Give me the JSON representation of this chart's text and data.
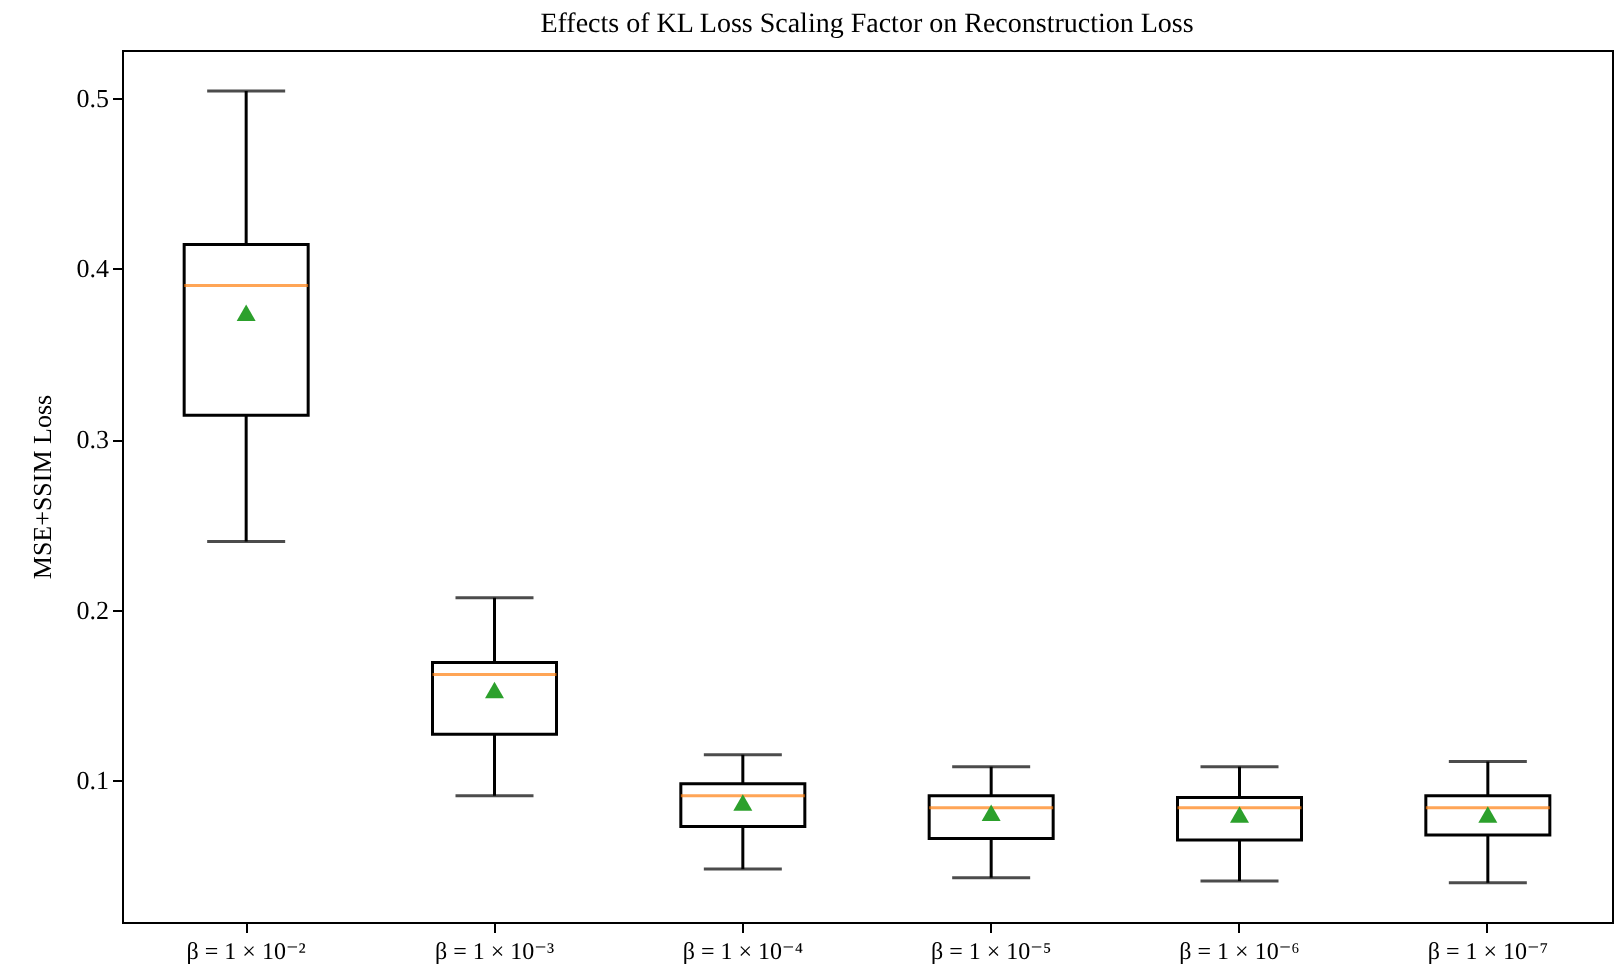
{
  "chart_data": {
    "type": "box",
    "title": "Effects of KL Loss Scaling Factor on Reconstruction Loss",
    "ylabel": "MSE+SSIM Loss",
    "categories": [
      "β = 1 × 10⁻²",
      "β = 1 × 10⁻³",
      "β = 1 × 10⁻⁴",
      "β = 1 × 10⁻⁵",
      "β = 1 × 10⁻⁶",
      "β = 1 × 10⁻⁷"
    ],
    "boxes": [
      {
        "low": 0.24,
        "q1": 0.314,
        "median": 0.39,
        "q3": 0.414,
        "high": 0.504,
        "mean": 0.374
      },
      {
        "low": 0.091,
        "q1": 0.127,
        "median": 0.162,
        "q3": 0.169,
        "high": 0.207,
        "mean": 0.153
      },
      {
        "low": 0.048,
        "q1": 0.073,
        "median": 0.091,
        "q3": 0.098,
        "high": 0.115,
        "mean": 0.087
      },
      {
        "low": 0.043,
        "q1": 0.066,
        "median": 0.084,
        "q3": 0.091,
        "high": 0.108,
        "mean": 0.081
      },
      {
        "low": 0.041,
        "q1": 0.065,
        "median": 0.084,
        "q3": 0.09,
        "high": 0.108,
        "mean": 0.08
      },
      {
        "low": 0.04,
        "q1": 0.068,
        "median": 0.084,
        "q3": 0.091,
        "high": 0.111,
        "mean": 0.08
      }
    ],
    "marker": "triangle",
    "ylim": [
      0.017,
      0.528
    ],
    "yticks": [
      0.1,
      0.2,
      0.3,
      0.4,
      0.5
    ]
  }
}
